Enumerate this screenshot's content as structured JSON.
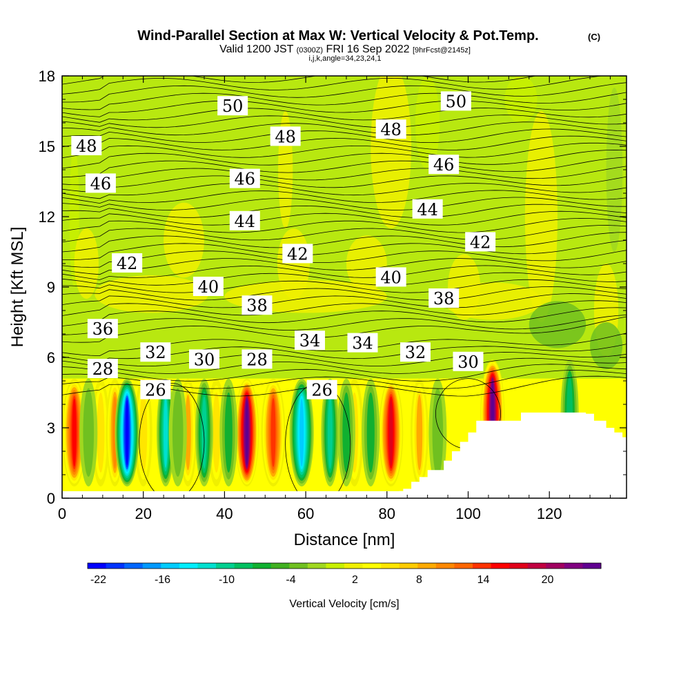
{
  "chart_data": {
    "type": "heatmap",
    "title": "Wind-Parallel Section at Max W: Vertical Velocity & Pot.Temp.",
    "title_mark": "(C)",
    "subtitle_parts": [
      "Valid 1200 JST",
      "(0300Z)",
      "FRI 16 Sep 2022",
      "[9hrFcst@2145z]"
    ],
    "subtitle2": "i,j,k,angle=34,23,24,1",
    "xlabel": "Distance [nm]",
    "ylabel": "Height [Kft MSL]",
    "xlim": [
      0,
      139
    ],
    "ylim": [
      0,
      18
    ],
    "x_ticks": [
      0,
      20,
      40,
      60,
      80,
      100,
      120
    ],
    "x_tick_labels": [
      "0",
      "20",
      "40",
      "60",
      "80",
      "100",
      "120"
    ],
    "y_ticks": [
      0,
      3,
      6,
      9,
      12,
      15,
      18
    ],
    "y_tick_labels": [
      "0",
      "3",
      "6",
      "9",
      "12",
      "15",
      "18"
    ],
    "colorbar": {
      "label": "Vertical Velocity [cm/s]",
      "min": -23,
      "max": 25,
      "tick_values": [
        -22,
        -16,
        -10,
        -4,
        2,
        8,
        14,
        20
      ],
      "tick_labels": [
        "-22",
        "-16",
        "-10",
        "-4",
        "2",
        "8",
        "14",
        "20"
      ],
      "colors": [
        "#0000ff",
        "#0033ff",
        "#0066ff",
        "#0099ff",
        "#00ccff",
        "#00eeff",
        "#00e0d0",
        "#00d090",
        "#00c060",
        "#10b030",
        "#40b020",
        "#70c020",
        "#a0d820",
        "#c8f000",
        "#f0f000",
        "#ffff00",
        "#ffe600",
        "#ffcc00",
        "#ffaa00",
        "#ff8800",
        "#ff6600",
        "#ff3300",
        "#ff0000",
        "#e0001a",
        "#c00040",
        "#a00060",
        "#800080",
        "#600090"
      ]
    },
    "vertical_velocity_updrafts": [
      {
        "x": 3,
        "w": 15
      },
      {
        "x": 9.5,
        "w": 6
      },
      {
        "x": 13,
        "w": 10
      },
      {
        "x": 20,
        "w": 6
      },
      {
        "x": 31,
        "w": 8
      },
      {
        "x": 38,
        "w": 6
      },
      {
        "x": 45.5,
        "w": 24
      },
      {
        "x": 52,
        "w": 14
      },
      {
        "x": 72,
        "w": 6
      },
      {
        "x": 81,
        "w": 17
      },
      {
        "x": 88,
        "w": 8
      },
      {
        "x": 106,
        "w": 24
      }
    ],
    "vertical_velocity_downdrafts": [
      {
        "x": 6.5,
        "w": -4
      },
      {
        "x": 16,
        "w": -21
      },
      {
        "x": 25.5,
        "w": -12
      },
      {
        "x": 28.5,
        "w": -4
      },
      {
        "x": 35,
        "w": -10
      },
      {
        "x": 41,
        "w": -5
      },
      {
        "x": 59,
        "w": -15
      },
      {
        "x": 66,
        "w": -10
      },
      {
        "x": 70,
        "w": -6
      },
      {
        "x": 76,
        "w": -5
      },
      {
        "x": 92.5,
        "w": -4
      },
      {
        "x": 125,
        "w": -8
      }
    ],
    "terrain_profile": [
      {
        "x": 83,
        "h": 0.3
      },
      {
        "x": 84,
        "h": 0.4
      },
      {
        "x": 86,
        "h": 0.7
      },
      {
        "x": 88,
        "h": 0.9
      },
      {
        "x": 90,
        "h": 1.2
      },
      {
        "x": 94,
        "h": 1.6
      },
      {
        "x": 96,
        "h": 2.0
      },
      {
        "x": 98,
        "h": 2.4
      },
      {
        "x": 100,
        "h": 2.8
      },
      {
        "x": 102,
        "h": 3.3
      },
      {
        "x": 113,
        "h": 3.65
      },
      {
        "x": 129,
        "h": 3.6
      },
      {
        "x": 131,
        "h": 3.3
      },
      {
        "x": 134,
        "h": 3.0
      },
      {
        "x": 136,
        "h": 2.8
      },
      {
        "x": 138,
        "h": 2.6
      }
    ],
    "theta_contour_labels": [
      {
        "text": "50",
        "x": 42,
        "y": 16.7
      },
      {
        "text": "50",
        "x": 97,
        "y": 16.9
      },
      {
        "text": "48",
        "x": 6,
        "y": 15.0
      },
      {
        "text": "48",
        "x": 55,
        "y": 15.4
      },
      {
        "text": "48",
        "x": 81,
        "y": 15.7
      },
      {
        "text": "46",
        "x": 9.5,
        "y": 13.4
      },
      {
        "text": "46",
        "x": 45,
        "y": 13.6
      },
      {
        "text": "46",
        "x": 94,
        "y": 14.2
      },
      {
        "text": "44",
        "x": 45,
        "y": 11.8
      },
      {
        "text": "44",
        "x": 90,
        "y": 12.3
      },
      {
        "text": "42",
        "x": 16,
        "y": 10.0
      },
      {
        "text": "42",
        "x": 58,
        "y": 10.4
      },
      {
        "text": "42",
        "x": 103,
        "y": 10.9
      },
      {
        "text": "40",
        "x": 36,
        "y": 9.0
      },
      {
        "text": "40",
        "x": 81,
        "y": 9.4
      },
      {
        "text": "38",
        "x": 48,
        "y": 8.2
      },
      {
        "text": "38",
        "x": 94,
        "y": 8.5
      },
      {
        "text": "36",
        "x": 10,
        "y": 7.2
      },
      {
        "text": "34",
        "x": 61,
        "y": 6.7
      },
      {
        "text": "34",
        "x": 74,
        "y": 6.6
      },
      {
        "text": "32",
        "x": 23,
        "y": 6.2
      },
      {
        "text": "32",
        "x": 87,
        "y": 6.2
      },
      {
        "text": "30",
        "x": 35,
        "y": 5.9
      },
      {
        "text": "30",
        "x": 100,
        "y": 5.8
      },
      {
        "text": "28",
        "x": 10,
        "y": 5.5
      },
      {
        "text": "28",
        "x": 48,
        "y": 5.9
      },
      {
        "text": "26",
        "x": 23,
        "y": 4.6
      },
      {
        "text": "26",
        "x": 64,
        "y": 4.6
      }
    ]
  }
}
